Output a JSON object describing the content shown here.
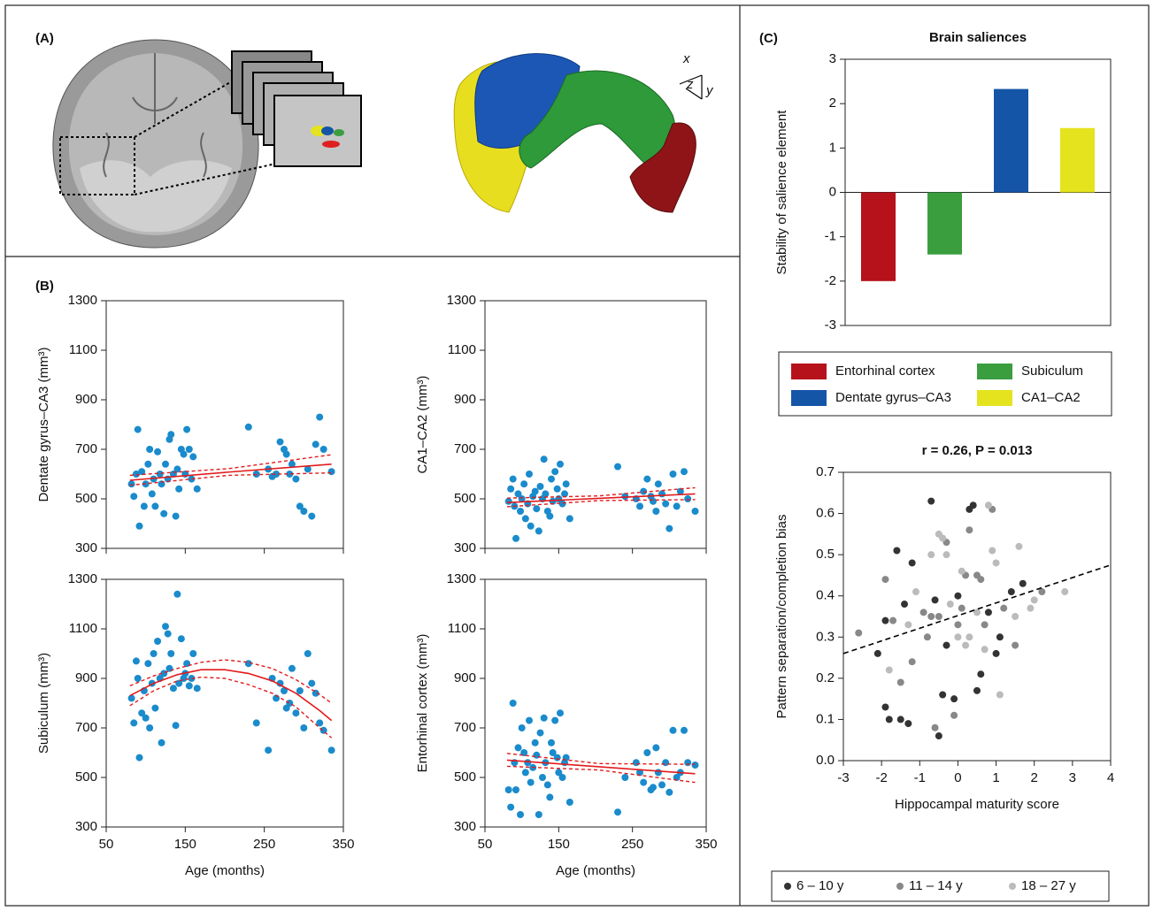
{
  "figure_text": {
    "panel_a": "(A)",
    "panel_b": "(B)",
    "panel_c": "(C)",
    "axis_x": "x",
    "axis_y": "y",
    "axis_z": "z"
  },
  "chart_data": [
    {
      "type": "scatter",
      "ylabel": "Dentate gyrus–CA3 (mm³)",
      "color": "#1a8bcc",
      "show_xticklabels": false,
      "xlim": [
        50,
        350
      ],
      "xticks": [
        50,
        150,
        250,
        350
      ],
      "ylim": [
        300,
        1300
      ],
      "yticks": [
        300,
        500,
        700,
        900,
        1100,
        1300
      ],
      "x": [
        82,
        85,
        88,
        90,
        92,
        95,
        98,
        100,
        103,
        105,
        108,
        110,
        112,
        115,
        118,
        120,
        123,
        125,
        128,
        130,
        132,
        135,
        138,
        140,
        142,
        145,
        148,
        150,
        152,
        155,
        158,
        160,
        165,
        230,
        240,
        255,
        260,
        265,
        270,
        275,
        278,
        282,
        285,
        290,
        295,
        300,
        305,
        310,
        315,
        320,
        325,
        335
      ],
      "values": [
        560,
        510,
        600,
        780,
        390,
        610,
        470,
        560,
        640,
        700,
        520,
        580,
        470,
        690,
        600,
        560,
        440,
        640,
        580,
        740,
        760,
        600,
        430,
        620,
        540,
        700,
        680,
        600,
        780,
        700,
        580,
        670,
        540,
        790,
        600,
        620,
        590,
        600,
        730,
        700,
        680,
        600,
        640,
        580,
        470,
        450,
        620,
        430,
        720,
        830,
        700,
        610
      ],
      "fit": {
        "color": "#e31a1c",
        "x": [
          80,
          205,
          335
        ],
        "values": [
          575,
          608,
          640
        ],
        "lower": [
          555,
          595,
          605
        ],
        "upper": [
          595,
          622,
          678
        ]
      }
    },
    {
      "type": "scatter",
      "ylabel": "CA1–CA2 (mm³)",
      "color": "#1a8bcc",
      "show_xticklabels": false,
      "xlim": [
        50,
        350
      ],
      "xticks": [
        50,
        150,
        250,
        350
      ],
      "ylim": [
        300,
        1300
      ],
      "yticks": [
        300,
        500,
        700,
        900,
        1100,
        1300
      ],
      "x": [
        82,
        85,
        88,
        90,
        92,
        95,
        98,
        100,
        103,
        105,
        108,
        110,
        112,
        115,
        118,
        120,
        123,
        125,
        128,
        130,
        132,
        135,
        138,
        140,
        142,
        145,
        148,
        150,
        152,
        155,
        158,
        160,
        165,
        230,
        240,
        255,
        260,
        265,
        270,
        275,
        278,
        282,
        285,
        290,
        295,
        300,
        305,
        310,
        315,
        320,
        325,
        335
      ],
      "values": [
        490,
        540,
        580,
        470,
        340,
        520,
        450,
        500,
        560,
        420,
        480,
        600,
        390,
        510,
        530,
        460,
        370,
        550,
        500,
        660,
        520,
        450,
        430,
        580,
        490,
        610,
        540,
        500,
        640,
        480,
        520,
        560,
        420,
        630,
        510,
        500,
        470,
        530,
        580,
        510,
        490,
        450,
        560,
        520,
        480,
        380,
        600,
        470,
        530,
        610,
        500,
        450
      ],
      "fit": {
        "color": "#e31a1c",
        "x": [
          80,
          205,
          335
        ],
        "values": [
          485,
          502,
          520
        ],
        "lower": [
          468,
          493,
          497
        ],
        "upper": [
          503,
          512,
          545
        ]
      }
    },
    {
      "type": "scatter",
      "ylabel": "Subiculum (mm³)",
      "xlabel": "Age (months)",
      "color": "#1a8bcc",
      "show_xticklabels": true,
      "xlim": [
        50,
        350
      ],
      "xticks": [
        50,
        150,
        250,
        350
      ],
      "ylim": [
        300,
        1300
      ],
      "yticks": [
        300,
        500,
        700,
        900,
        1100,
        1300
      ],
      "x": [
        82,
        85,
        88,
        90,
        92,
        95,
        98,
        100,
        103,
        105,
        108,
        110,
        112,
        115,
        118,
        120,
        123,
        125,
        128,
        130,
        132,
        135,
        138,
        140,
        142,
        145,
        148,
        150,
        152,
        155,
        158,
        160,
        165,
        230,
        240,
        255,
        260,
        265,
        270,
        275,
        278,
        282,
        285,
        290,
        295,
        300,
        305,
        310,
        315,
        320,
        325,
        335
      ],
      "values": [
        820,
        720,
        970,
        900,
        580,
        760,
        850,
        740,
        960,
        700,
        880,
        1000,
        780,
        1050,
        900,
        640,
        920,
        1110,
        1080,
        940,
        1000,
        860,
        710,
        1240,
        880,
        1060,
        900,
        920,
        960,
        870,
        900,
        1000,
        860,
        960,
        720,
        610,
        900,
        820,
        880,
        850,
        780,
        800,
        940,
        760,
        850,
        700,
        1000,
        880,
        840,
        720,
        690,
        610
      ],
      "fit": {
        "color": "#e31a1c",
        "x": [
          80,
          110,
          140,
          170,
          200,
          230,
          260,
          290,
          320,
          335
        ],
        "values": [
          830,
          880,
          915,
          935,
          935,
          920,
          890,
          840,
          770,
          730
        ],
        "lower": [
          790,
          850,
          890,
          905,
          900,
          875,
          840,
          785,
          700,
          660
        ],
        "upper": [
          870,
          910,
          940,
          965,
          975,
          965,
          940,
          895,
          835,
          800
        ]
      }
    },
    {
      "type": "scatter",
      "ylabel": "Entorhinal cortex (mm³)",
      "xlabel": "Age (months)",
      "color": "#1a8bcc",
      "show_xticklabels": true,
      "xlim": [
        50,
        350
      ],
      "xticks": [
        50,
        150,
        250,
        350
      ],
      "ylim": [
        300,
        1300
      ],
      "yticks": [
        300,
        500,
        700,
        900,
        1100,
        1300
      ],
      "x": [
        82,
        85,
        88,
        90,
        92,
        95,
        98,
        100,
        103,
        105,
        108,
        110,
        112,
        115,
        118,
        120,
        123,
        125,
        128,
        130,
        132,
        135,
        138,
        140,
        142,
        145,
        148,
        150,
        152,
        155,
        158,
        160,
        165,
        230,
        240,
        255,
        260,
        265,
        270,
        275,
        278,
        282,
        285,
        290,
        295,
        300,
        305,
        310,
        315,
        320,
        325,
        335
      ],
      "values": [
        450,
        380,
        800,
        560,
        450,
        620,
        350,
        700,
        600,
        520,
        560,
        730,
        480,
        540,
        640,
        590,
        350,
        680,
        500,
        740,
        560,
        470,
        420,
        640,
        600,
        730,
        580,
        520,
        760,
        500,
        560,
        580,
        400,
        360,
        500,
        560,
        520,
        480,
        600,
        450,
        460,
        620,
        520,
        470,
        560,
        440,
        690,
        500,
        520,
        690,
        560,
        550
      ],
      "fit": {
        "color": "#e31a1c",
        "x": [
          80,
          205,
          335
        ],
        "values": [
          570,
          543,
          515
        ],
        "lower": [
          545,
          530,
          480
        ],
        "upper": [
          597,
          556,
          553
        ]
      }
    },
    {
      "type": "bar",
      "title": "Brain saliences",
      "ylabel": "Stability of salience element",
      "categories": [
        "Entorhinal cortex",
        "Subiculum",
        "Dentate gyrus–CA3",
        "CA1–CA2"
      ],
      "values": [
        -2.0,
        -1.4,
        2.33,
        1.45
      ],
      "colors": [
        "#b5121b",
        "#3a9e3f",
        "#1555a8",
        "#e5e31e"
      ],
      "ylim": [
        -3,
        3
      ],
      "yticks": [
        -3,
        -2,
        -1,
        0,
        1,
        2,
        3
      ],
      "legend": "bottom"
    },
    {
      "type": "scatter",
      "title": "r = 0.26, P = 0.013",
      "xlabel": "Hippocampal maturity score",
      "ylabel": "Pattern separation/completion bias",
      "xlim": [
        -3,
        4
      ],
      "xticks": [
        -3,
        -2,
        -1,
        0,
        1,
        2,
        3,
        4
      ],
      "ylim": [
        0,
        0.7
      ],
      "yticks": [
        {
          "value": 0,
          "label": "0.0"
        },
        0.1,
        0.2,
        0.3,
        0.4,
        0.5,
        0.6,
        0.7
      ],
      "show_xticklabels": true,
      "legend": "bottom",
      "series": [
        {
          "name": "6 – 10 y",
          "color": "#333333",
          "x": [
            -1.9,
            -1.8,
            -1.6,
            -1.5,
            -1.4,
            -1.3,
            -1.2,
            -0.7,
            -0.6,
            -0.5,
            -0.4,
            -0.3,
            -0.1,
            0.0,
            0.3,
            0.4,
            0.5,
            0.6,
            0.8,
            1.0,
            1.1,
            1.4,
            1.7,
            -2.1,
            -1.9
          ],
          "values": [
            0.13,
            0.1,
            0.51,
            0.1,
            0.38,
            0.09,
            0.48,
            0.63,
            0.39,
            0.06,
            0.16,
            0.28,
            0.15,
            0.4,
            0.61,
            0.62,
            0.17,
            0.21,
            0.36,
            0.26,
            0.3,
            0.41,
            0.43,
            0.26,
            0.34
          ]
        },
        {
          "name": "11 – 14 y",
          "color": "#888888",
          "x": [
            -2.6,
            -1.9,
            -1.7,
            -1.5,
            -1.2,
            -0.9,
            -0.8,
            -0.6,
            -0.5,
            -0.3,
            -0.1,
            0.1,
            0.2,
            0.3,
            0.5,
            0.6,
            0.7,
            0.9,
            1.2,
            1.5,
            2.2,
            -0.7,
            0.0
          ],
          "values": [
            0.31,
            0.44,
            0.34,
            0.19,
            0.24,
            0.36,
            0.3,
            0.08,
            0.35,
            0.53,
            0.11,
            0.37,
            0.45,
            0.56,
            0.45,
            0.44,
            0.33,
            0.61,
            0.37,
            0.28,
            0.41,
            0.35,
            0.33
          ]
        },
        {
          "name": "18 – 27 y",
          "color": "#bbbbbb",
          "x": [
            -1.8,
            -1.3,
            -1.1,
            -0.7,
            -0.5,
            -0.3,
            -0.2,
            0.0,
            0.1,
            0.3,
            0.5,
            0.7,
            0.8,
            0.9,
            1.0,
            1.1,
            1.5,
            1.6,
            1.9,
            2.0,
            2.8,
            -0.4,
            0.2
          ],
          "values": [
            0.22,
            0.33,
            0.41,
            0.5,
            0.55,
            0.5,
            0.38,
            0.3,
            0.46,
            0.3,
            0.36,
            0.27,
            0.62,
            0.51,
            0.48,
            0.16,
            0.35,
            0.52,
            0.37,
            0.39,
            0.41,
            0.54,
            0.28
          ]
        }
      ],
      "fit": {
        "color": "#000000",
        "dashed": true,
        "x": [
          -3,
          4
        ],
        "values": [
          0.26,
          0.475
        ]
      }
    }
  ]
}
